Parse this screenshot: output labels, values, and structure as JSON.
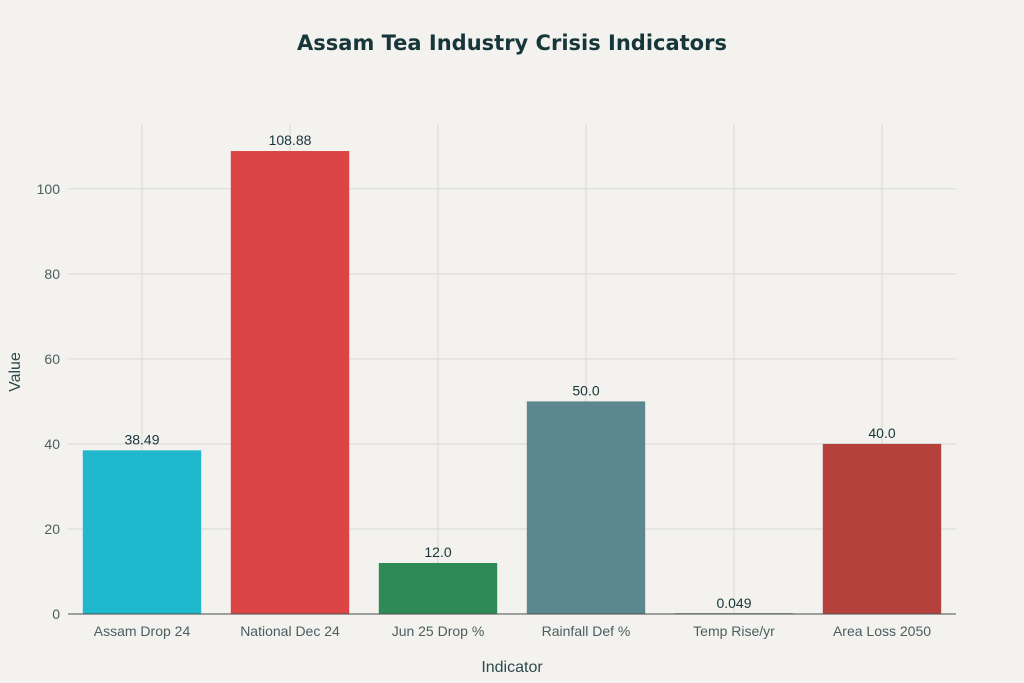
{
  "chart_data": {
    "type": "bar",
    "title": "Assam Tea Industry Crisis Indicators",
    "xlabel": "Indicator",
    "ylabel": "Value",
    "categories": [
      "Assam Drop 24",
      "National Dec 24",
      "Jun 25 Drop %",
      "Rainfall Def %",
      "Temp Rise/yr",
      "Area Loss 2050"
    ],
    "values": [
      38.49,
      108.88,
      12.0,
      50.0,
      0.049,
      40.0
    ],
    "value_labels": [
      "38.49",
      "108.88",
      "12.0",
      "50.0",
      "0.049",
      "40.0"
    ],
    "colors": [
      "#1fb8cd",
      "#db4545",
      "#2e8b57",
      "#5d878f",
      "#5d878f",
      "#b4413c"
    ],
    "ylim": [
      0,
      115
    ],
    "yticks": [
      0,
      20,
      40,
      60,
      80,
      100
    ],
    "grid": true,
    "legend": "none"
  }
}
